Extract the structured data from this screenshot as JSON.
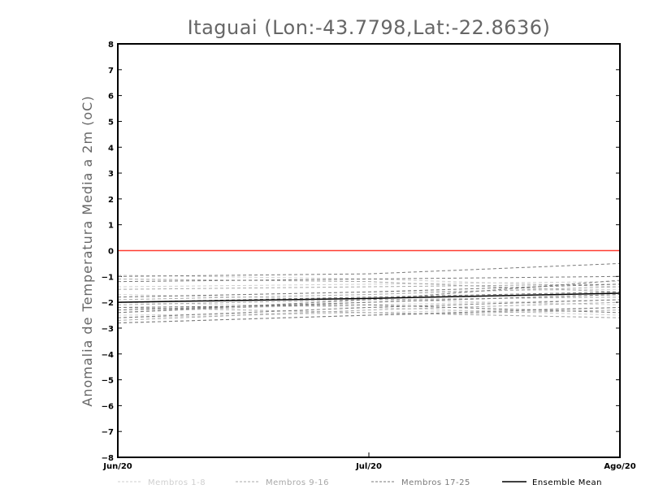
{
  "chart_data": {
    "type": "line",
    "title": "Itaguai (Lon:-43.7798,Lat:-22.8636)",
    "ylabel": "Anomalia de Temperatura Media a 2m (oC)",
    "xlabel": "",
    "categories": [
      "Jun/20",
      "Jul/20",
      "Ago/20"
    ],
    "ylim": [
      -8,
      8
    ],
    "yticks": [
      -8,
      -7,
      -6,
      -5,
      -4,
      -3,
      -2,
      -1,
      0,
      1,
      2,
      3,
      4,
      5,
      6,
      7,
      8
    ],
    "grid": false,
    "zero_line_color": "#ff3b30",
    "legend_position": "bottom",
    "legend": [
      {
        "label": "Membros 1-8",
        "color": "#cfcfcf",
        "style": "dashed"
      },
      {
        "label": "Membros 9-16",
        "color": "#a8a8a8",
        "style": "dashed"
      },
      {
        "label": "Membros 17-25",
        "color": "#7a7a7a",
        "style": "dashed"
      },
      {
        "label": "Ensemble Mean",
        "color": "#000000",
        "style": "solid"
      }
    ],
    "series": [
      {
        "group": 1,
        "values": [
          -0.95,
          -1.1,
          -1.4
        ]
      },
      {
        "group": 1,
        "values": [
          -2.3,
          -2.1,
          -1.9
        ]
      },
      {
        "group": 1,
        "values": [
          -1.8,
          -1.6,
          -1.5
        ]
      },
      {
        "group": 1,
        "values": [
          -2.6,
          -2.4,
          -2.2
        ]
      },
      {
        "group": 1,
        "values": [
          -1.4,
          -1.3,
          -1.2
        ]
      },
      {
        "group": 1,
        "values": [
          -2.0,
          -2.2,
          -2.5
        ]
      },
      {
        "group": 1,
        "values": [
          -2.5,
          -2.4,
          -2.6
        ]
      },
      {
        "group": 1,
        "values": [
          -1.7,
          -1.9,
          -2.1
        ]
      },
      {
        "group": 2,
        "values": [
          -1.1,
          -1.2,
          -1.6
        ]
      },
      {
        "group": 2,
        "values": [
          -2.4,
          -2.0,
          -1.7
        ]
      },
      {
        "group": 2,
        "values": [
          -2.1,
          -1.9,
          -1.8
        ]
      },
      {
        "group": 2,
        "values": [
          -2.8,
          -2.5,
          -2.3
        ]
      },
      {
        "group": 2,
        "values": [
          -1.5,
          -1.4,
          -1.3
        ]
      },
      {
        "group": 2,
        "values": [
          -2.2,
          -2.4,
          -2.6
        ]
      },
      {
        "group": 2,
        "values": [
          -2.7,
          -2.3,
          -2.0
        ]
      },
      {
        "group": 2,
        "values": [
          -1.9,
          -1.7,
          -1.4
        ]
      },
      {
        "group": 3,
        "values": [
          -1.0,
          -0.9,
          -0.5
        ]
      },
      {
        "group": 3,
        "values": [
          -1.2,
          -1.1,
          -1.0
        ]
      },
      {
        "group": 3,
        "values": [
          -2.3,
          -2.0,
          -1.7
        ]
      },
      {
        "group": 3,
        "values": [
          -2.6,
          -2.2,
          -1.9
        ]
      },
      {
        "group": 3,
        "values": [
          -1.8,
          -1.6,
          -1.3
        ]
      },
      {
        "group": 3,
        "values": [
          -2.4,
          -1.9,
          -1.15
        ]
      },
      {
        "group": 3,
        "values": [
          -2.8,
          -2.5,
          -2.2
        ]
      },
      {
        "group": 3,
        "values": [
          -2.0,
          -1.8,
          -1.6
        ]
      },
      {
        "group": 3,
        "values": [
          -2.2,
          -2.1,
          -2.4
        ]
      },
      {
        "group": 4,
        "values": [
          -2.0,
          -1.85,
          -1.65
        ]
      }
    ]
  }
}
